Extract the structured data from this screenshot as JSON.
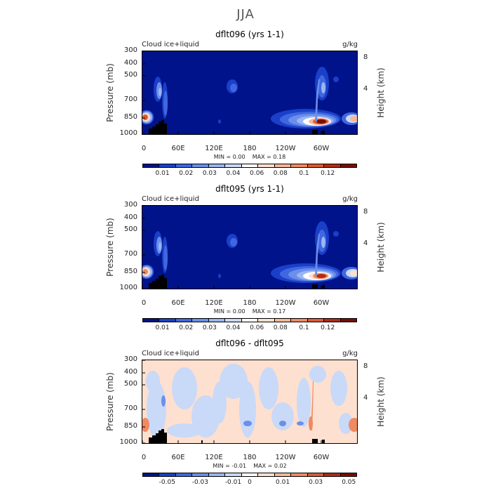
{
  "page_title": "JJA",
  "colors": {
    "palette": [
      "#00138a",
      "#1a3fc8",
      "#3f67e0",
      "#6b8fea",
      "#9bb6f2",
      "#c9d9f8",
      "#ffffff",
      "#fde0cf",
      "#f8b79a",
      "#ef8a62",
      "#dd5a32",
      "#b32b14",
      "#7a0c05"
    ],
    "background_field": "#00138a",
    "topography": "#000000"
  },
  "panels": [
    {
      "title": "dflt096 (yrs 1-1)",
      "variable": "Cloud ice+liquid",
      "units": "g/kg",
      "min_label": "MIN =    0.00",
      "max_label": "MAX =    0.18",
      "colorbar_labels": [
        "0.01",
        "0.02",
        "0.03",
        "0.04",
        "0.06",
        "0.08",
        "0.1",
        "0.12"
      ]
    },
    {
      "title": "dflt095 (yrs 1-1)",
      "variable": "Cloud ice+liquid",
      "units": "g/kg",
      "min_label": "MIN =    0.00",
      "max_label": "MAX =    0.17",
      "colorbar_labels": [
        "0.01",
        "0.02",
        "0.03",
        "0.04",
        "0.06",
        "0.08",
        "0.1",
        "0.12"
      ]
    },
    {
      "title": "dflt096 - dflt095",
      "variable": "Cloud ice+liquid",
      "units": "g/kg",
      "min_label": "MIN =  -0.01",
      "max_label": "MAX =    0.02",
      "colorbar_labels": [
        "-0.05",
        "-0.03",
        "-0.01",
        "0",
        "0.01",
        "0.03",
        "0.05"
      ]
    }
  ],
  "axes": {
    "ylabel": "Pressure (mb)",
    "y2label": "Height (km)",
    "pressure_ticks": [
      "300",
      "400",
      "500",
      "700",
      "850",
      "1000"
    ],
    "height_ticks": [
      "8",
      "4"
    ],
    "lon_ticks": [
      "0",
      "60E",
      "120E",
      "180",
      "120W",
      "60W"
    ]
  },
  "chart_data": [
    {
      "type": "heatmap",
      "title": "dflt096 (yrs 1-1)",
      "ylabel": "Pressure (mb)",
      "y2label": "Height (km)",
      "x_ticks": [
        "0",
        "60E",
        "120E",
        "180",
        "120W",
        "60W"
      ],
      "x_values_deg_east": [
        0,
        60,
        120,
        180,
        240,
        300
      ],
      "xlim": [
        0,
        360
      ],
      "y_ticks_mb": [
        300,
        400,
        500,
        700,
        850,
        1000
      ],
      "ylim_mb": [
        1000,
        300
      ],
      "y2_ticks_km": [
        8,
        4
      ],
      "color_levels": [
        0.01,
        0.02,
        0.03,
        0.04,
        0.06,
        0.08,
        0.1,
        0.12
      ],
      "min": 0.0,
      "max": 0.18,
      "units": "g/kg",
      "features": [
        {
          "lon": 262,
          "p": 920,
          "value": 0.15
        },
        {
          "lon": 5,
          "p": 870,
          "value": 0.09
        },
        {
          "lon": 355,
          "p": 870,
          "value": 0.05
        },
        {
          "lon": 28,
          "p": 640,
          "value": 0.03
        },
        {
          "lon": 155,
          "p": 530,
          "value": 0.02
        },
        {
          "lon": 292,
          "p": 560,
          "value": 0.025
        }
      ]
    },
    {
      "type": "heatmap",
      "title": "dflt095 (yrs 1-1)",
      "ylabel": "Pressure (mb)",
      "y2label": "Height (km)",
      "x_ticks": [
        "0",
        "60E",
        "120E",
        "180",
        "120W",
        "60W"
      ],
      "x_values_deg_east": [
        0,
        60,
        120,
        180,
        240,
        300
      ],
      "xlim": [
        0,
        360
      ],
      "y_ticks_mb": [
        300,
        400,
        500,
        700,
        850,
        1000
      ],
      "ylim_mb": [
        1000,
        300
      ],
      "y2_ticks_km": [
        8,
        4
      ],
      "color_levels": [
        0.01,
        0.02,
        0.03,
        0.04,
        0.06,
        0.08,
        0.1,
        0.12
      ],
      "min": 0.0,
      "max": 0.17,
      "units": "g/kg",
      "features": [
        {
          "lon": 262,
          "p": 920,
          "value": 0.14
        },
        {
          "lon": 5,
          "p": 870,
          "value": 0.08
        },
        {
          "lon": 355,
          "p": 870,
          "value": 0.04
        },
        {
          "lon": 28,
          "p": 640,
          "value": 0.03
        },
        {
          "lon": 155,
          "p": 530,
          "value": 0.02
        },
        {
          "lon": 292,
          "p": 560,
          "value": 0.025
        }
      ]
    },
    {
      "type": "heatmap",
      "title": "dflt096 - dflt095",
      "ylabel": "Pressure (mb)",
      "y2label": "Height (km)",
      "x_ticks": [
        "0",
        "60E",
        "120E",
        "180",
        "120W",
        "60W"
      ],
      "x_values_deg_east": [
        0,
        60,
        120,
        180,
        240,
        300
      ],
      "xlim": [
        0,
        360
      ],
      "y_ticks_mb": [
        300,
        400,
        500,
        700,
        850,
        1000
      ],
      "ylim_mb": [
        1000,
        300
      ],
      "y2_ticks_km": [
        8,
        4
      ],
      "color_levels": [
        -0.05,
        -0.03,
        -0.01,
        0,
        0.01,
        0.03,
        0.05
      ],
      "min": -0.01,
      "max": 0.02,
      "units": "g/kg"
    }
  ]
}
